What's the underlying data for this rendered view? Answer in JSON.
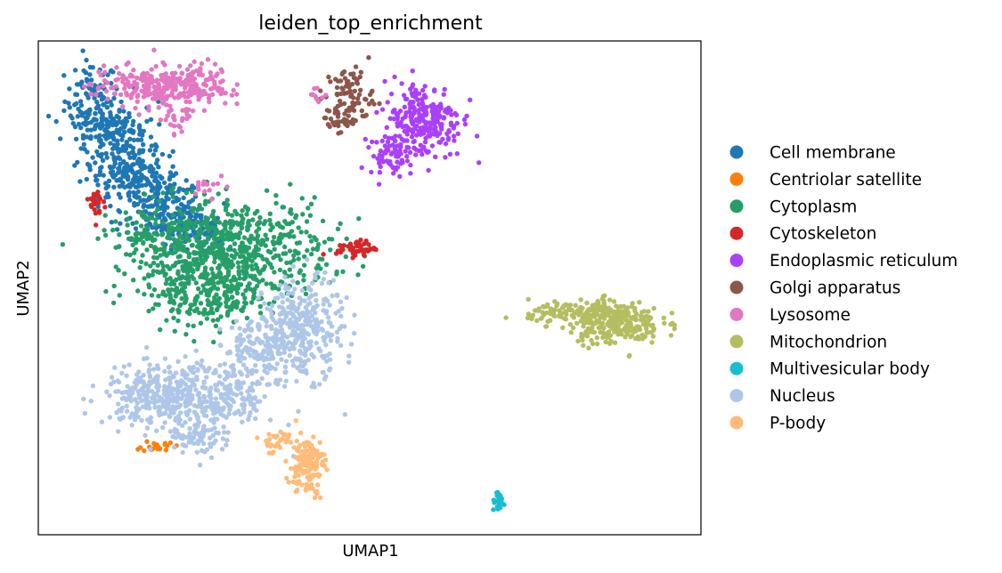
{
  "chart_data": {
    "type": "scatter",
    "title": "leiden_top_enrichment",
    "xlabel": "UMAP1",
    "ylabel": "UMAP2",
    "xlim": [
      0,
      100
    ],
    "ylim": [
      0,
      100
    ],
    "ticks_shown": false,
    "grid": false,
    "legend_position": "right",
    "clusters": [
      {
        "name": "Cell membrane",
        "color": "#1f77b4",
        "blobs": [
          [
            8,
            88,
            2,
            4,
            90
          ],
          [
            12,
            79,
            3,
            5,
            160
          ],
          [
            15,
            72,
            3,
            3,
            140
          ],
          [
            19,
            66,
            3,
            3,
            130
          ],
          [
            23,
            62,
            2.5,
            2.5,
            90
          ],
          [
            10,
            83,
            2.5,
            3,
            80
          ]
        ]
      },
      {
        "name": "Centriolar satellite",
        "color": "#ff7f0e",
        "blobs": [
          [
            18,
            18,
            1.2,
            0.6,
            22
          ]
        ]
      },
      {
        "name": "Cytoplasm",
        "color": "#279e68",
        "blobs": [
          [
            30,
            58,
            7,
            5,
            520
          ],
          [
            22,
            54,
            4,
            6,
            240
          ],
          [
            27,
            48,
            3,
            3,
            120
          ],
          [
            15,
            61,
            2,
            2,
            40
          ]
        ]
      },
      {
        "name": "Cytoskeleton",
        "color": "#d62728",
        "blobs": [
          [
            48,
            58,
            1.5,
            0.8,
            45
          ],
          [
            9,
            67,
            0.6,
            1.8,
            22
          ]
        ]
      },
      {
        "name": "Endoplasmic reticulum",
        "color": "#aa40fc",
        "blobs": [
          [
            58,
            84,
            3,
            4,
            250
          ],
          [
            53,
            77,
            1.5,
            2,
            60
          ]
        ]
      },
      {
        "name": "Golgi apparatus",
        "color": "#8c564b",
        "blobs": [
          [
            47,
            89,
            1.8,
            2.8,
            80
          ],
          [
            45,
            84,
            1.2,
            1.2,
            30
          ]
        ]
      },
      {
        "name": "Lysosome",
        "color": "#e377c2",
        "blobs": [
          [
            16,
            91,
            4,
            2,
            180
          ],
          [
            24,
            91,
            2.5,
            2.2,
            110
          ],
          [
            21,
            85,
            1.5,
            2,
            30
          ],
          [
            26,
            71,
            1.5,
            1,
            15
          ],
          [
            42,
            89,
            0.8,
            1,
            12
          ]
        ]
      },
      {
        "name": "Mitochondrion",
        "color": "#b5bd61",
        "blobs": [
          [
            87,
            43,
            3.5,
            2.2,
            230
          ],
          [
            82,
            45,
            4,
            1.2,
            120
          ]
        ]
      },
      {
        "name": "Multivesicular body",
        "color": "#17becf",
        "blobs": [
          [
            69.5,
            6.5,
            0.5,
            0.8,
            25
          ]
        ]
      },
      {
        "name": "Nucleus",
        "color": "#aec7e8",
        "blobs": [
          [
            18,
            28,
            4,
            3,
            300
          ],
          [
            27,
            28,
            4.5,
            4,
            250
          ],
          [
            40,
            42,
            3,
            5,
            300
          ],
          [
            34,
            38,
            3,
            3,
            150
          ],
          [
            24,
            20,
            2,
            2,
            60
          ]
        ]
      },
      {
        "name": "P-body",
        "color": "#ffbb78",
        "blobs": [
          [
            40.5,
            14,
            1.3,
            3,
            140
          ],
          [
            36,
            19,
            1.5,
            1.2,
            30
          ]
        ]
      }
    ]
  }
}
